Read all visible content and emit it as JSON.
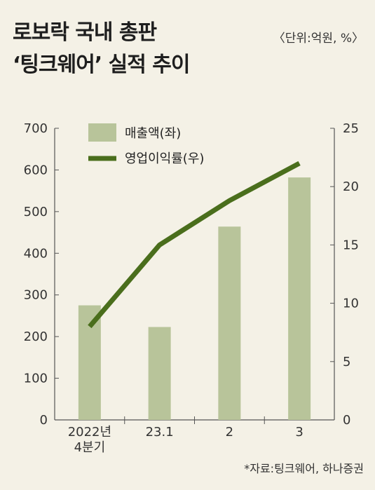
{
  "title_line1": "로보락 국내 총판",
  "title_line2": "‘팅크웨어’ 실적 추이",
  "unit_note": "〈단위:억원, %〉",
  "source_note": "*자료:팅크웨어, 하나증권",
  "colors": {
    "bar": "#b8c49a",
    "line": "#4a6e1c",
    "background": "#f4f1e6",
    "axis": "#555555"
  },
  "chart_data": {
    "type": "bar",
    "categories": [
      "2022년\n4분기",
      "23.1",
      "2",
      "3"
    ],
    "series": [
      {
        "name": "매출액(좌)",
        "type": "bar",
        "axis": "left",
        "values": [
          275,
          223,
          464,
          582
        ]
      },
      {
        "name": "영업이익률(우)",
        "type": "line",
        "axis": "right",
        "values": [
          8.0,
          15.0,
          18.8,
          22.0
        ]
      }
    ],
    "y_left": {
      "lim": [
        0,
        700
      ],
      "ticks": [
        0,
        100,
        200,
        300,
        400,
        500,
        600,
        700
      ]
    },
    "y_right": {
      "lim": [
        0,
        25
      ],
      "ticks": [
        0,
        5,
        10,
        15,
        20,
        25
      ]
    },
    "legend_position": "top-center",
    "grid": false
  }
}
